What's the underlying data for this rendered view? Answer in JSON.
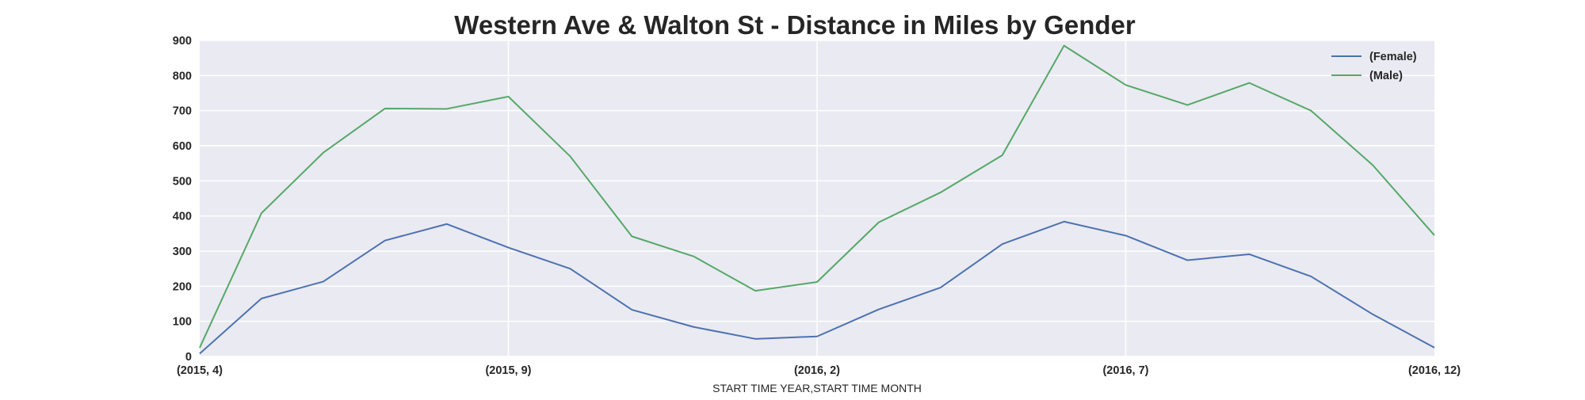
{
  "chart_data": {
    "type": "line",
    "title": "Western Ave & Walton St - Distance in Miles by Gender",
    "xlabel": "START TIME YEAR,START TIME MONTH",
    "ylabel": "",
    "categories": [
      "(2015, 4)",
      "(2015, 5)",
      "(2015, 6)",
      "(2015, 7)",
      "(2015, 8)",
      "(2015, 9)",
      "(2015, 10)",
      "(2015, 11)",
      "(2015, 12)",
      "(2016, 1)",
      "(2016, 2)",
      "(2016, 3)",
      "(2016, 4)",
      "(2016, 5)",
      "(2016, 6)",
      "(2016, 7)",
      "(2016, 8)",
      "(2016, 9)",
      "(2016, 10)",
      "(2016, 11)",
      "(2016, 12)"
    ],
    "x_tick_labels": [
      "(2015, 4)",
      "(2015, 9)",
      "(2016, 2)",
      "(2016, 7)",
      "(2016, 12)"
    ],
    "y_ticks": [
      0,
      100,
      200,
      300,
      400,
      500,
      600,
      700,
      800,
      900
    ],
    "ylim": [
      0,
      900
    ],
    "grid": true,
    "legend_position": "top-right",
    "background_color": "#eaeaf2",
    "series": [
      {
        "name": "(Female)",
        "color": "#4c72b0",
        "values": [
          8,
          165,
          213,
          330,
          377,
          310,
          250,
          133,
          84,
          50,
          57,
          134,
          196,
          320,
          384,
          344,
          274,
          291,
          228,
          120,
          25
        ]
      },
      {
        "name": "(Male)",
        "color": "#55a868",
        "values": [
          25,
          408,
          580,
          706,
          705,
          740,
          570,
          342,
          285,
          187,
          212,
          382,
          467,
          573,
          885,
          773,
          716,
          779,
          700,
          545,
          345
        ]
      }
    ]
  }
}
